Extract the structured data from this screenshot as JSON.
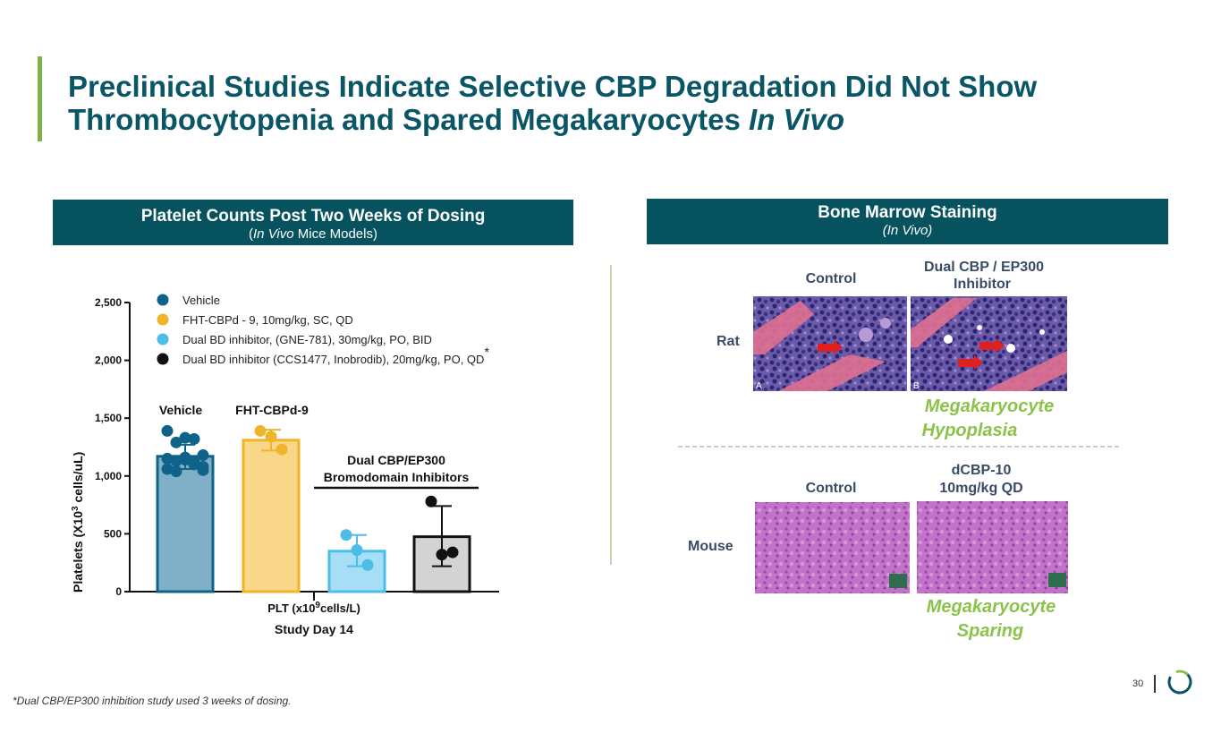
{
  "colors": {
    "title": "#0a5566",
    "header_bg": "#06535f",
    "accent": "#7cb342",
    "highlight": "#8bc34a",
    "vehicle": "#0f6389",
    "fht": "#f0b429",
    "gne": "#4bbde6",
    "ccs": "#111111"
  },
  "title": {
    "line1": "Preclinical Studies Indicate Selective CBP Degradation Did Not Show",
    "line2_prefix": "Thrombocytopenia and Spared Megakaryocytes ",
    "line2_italic": "In Vivo"
  },
  "left_panel": {
    "header_title": "Platelet Counts Post Two Weeks of Dosing",
    "header_sub_italic": "In Vivo",
    "header_sub_plain": " Mice Models)",
    "header_sub_open": "("
  },
  "right_panel": {
    "header_title": "Bone Marrow Staining",
    "header_sub": "(In Vivo)",
    "rat_label": "Rat",
    "mouse_label": "Mouse",
    "rat_control_label": "Control",
    "rat_inhibitor_label_1": "Dual CBP / EP300",
    "rat_inhibitor_label_2": "Inhibitor",
    "rat_result_1": "Megakaryocyte",
    "rat_result_2": "Hypoplasia",
    "mouse_control_label": "Control",
    "mouse_treat_label_1": "dCBP-10",
    "mouse_treat_label_2": "10mg/kg QD",
    "mouse_result_1": "Megakaryocyte",
    "mouse_result_2": "Sparing",
    "panel_a": "A",
    "panel_b": "B"
  },
  "chart_data": {
    "type": "bar",
    "ylabel_1": "Platelets  (X10",
    "ylabel_sup": "3",
    "ylabel_2": " cells/uL)",
    "xlabel_1": "PLT (x10",
    "xlabel_sup": "9",
    "xlabel_2": "cells/L)",
    "xlabel_sub": "Study Day 14",
    "ylim": [
      0,
      2500
    ],
    "yticks": [
      0,
      500,
      1000,
      1500,
      2000,
      2500
    ],
    "ytick_labels": [
      "0",
      "500",
      "1,000",
      "1,500",
      "2,000",
      "2,500"
    ],
    "legend": [
      {
        "label": "Vehicle",
        "color": "#0f6389",
        "suffix": ""
      },
      {
        "label": "FHT-CBPd - 9, 10mg/kg, SC, QD",
        "color": "#f0b429",
        "suffix": ""
      },
      {
        "label": "Dual BD inhibitor, (GNE-781), 30mg/kg, PO, BID",
        "color": "#4bbde6",
        "suffix": ""
      },
      {
        "label": "Dual BD inhibitor  (CCS1477, Inobrodib), 20mg/kg, PO, QD",
        "color": "#111111",
        "suffix": "*"
      }
    ],
    "series": [
      {
        "name": "Vehicle",
        "value": 1170,
        "err": [
          1060,
          1270
        ],
        "fill": "#7fb0c8",
        "edge": "#0f6389",
        "points": [
          1390,
          1290,
          1330,
          1320,
          1180,
          1150,
          1130,
          1140,
          1100,
          1050,
          1060,
          1040,
          1160,
          1120,
          1080
        ]
      },
      {
        "name": "FHT-CBPd-9",
        "value": 1310,
        "err": [
          1220,
          1400
        ],
        "fill": "#f8d68a",
        "edge": "#f0b429",
        "points": [
          1390,
          1340,
          1230
        ]
      },
      {
        "name": "GNE-781",
        "value": 350,
        "err": [
          220,
          490
        ],
        "fill": "#a6def5",
        "edge": "#4bbde6",
        "points": [
          490,
          360,
          230
        ]
      },
      {
        "name": "CCS1477",
        "value": 475,
        "err": [
          220,
          740
        ],
        "fill": "#d3d3d3",
        "edge": "#111111",
        "points": [
          780,
          320,
          340
        ]
      }
    ],
    "annotations": {
      "vehicle": "Vehicle",
      "fht": "FHT-CBPd-9",
      "dual_1": "Dual CBP/EP300",
      "dual_2": "Bromodomain Inhibitors"
    }
  },
  "footnote": "*Dual CBP/EP300 inhibition study used 3 weeks of dosing.",
  "page_number": "30"
}
